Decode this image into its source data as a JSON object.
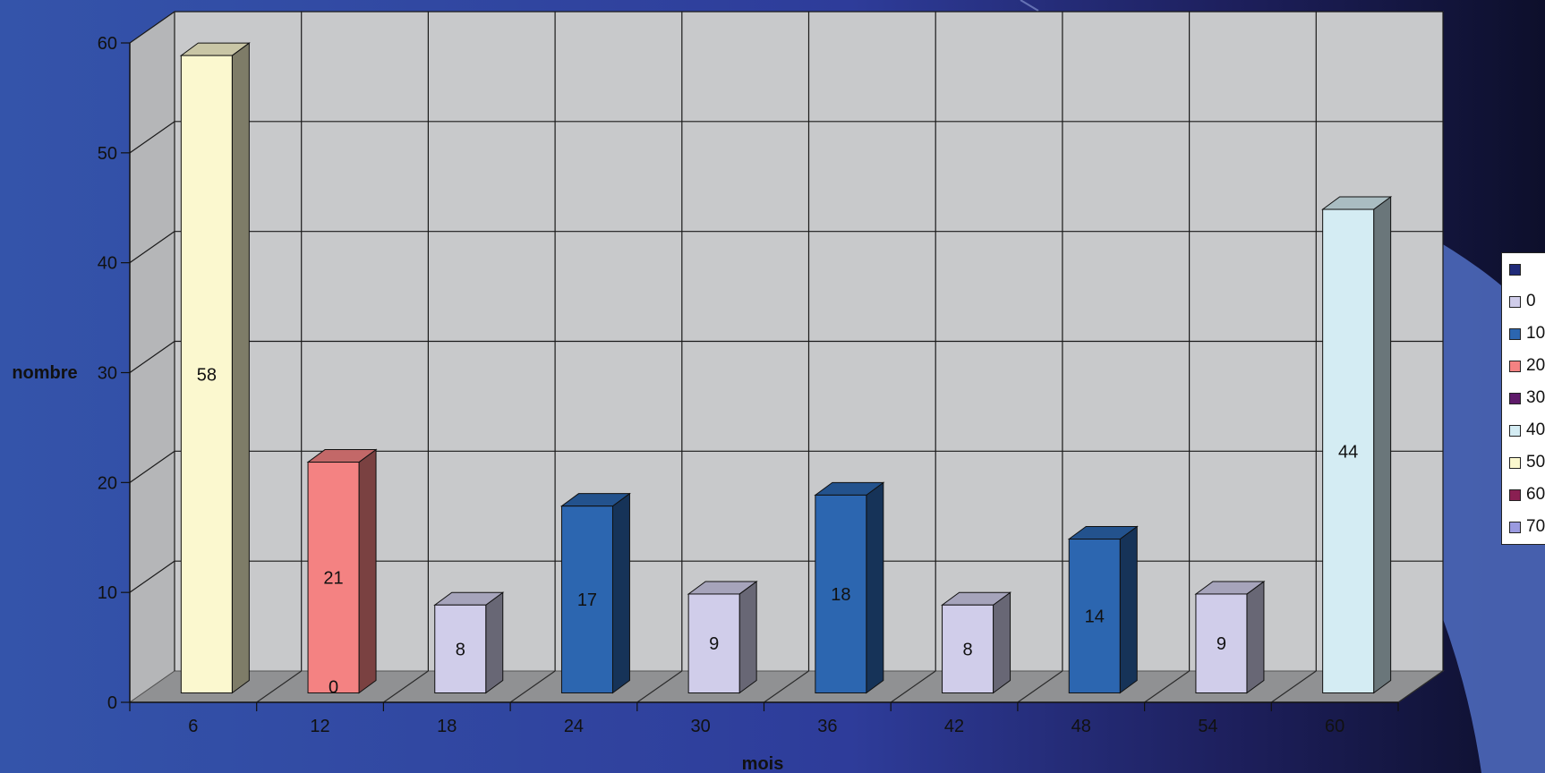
{
  "chart_data": {
    "type": "bar",
    "xlabel": "mois",
    "ylabel": "nombre",
    "ylim": [
      0,
      60
    ],
    "yticks": [
      0,
      10,
      20,
      30,
      40,
      50,
      60
    ],
    "categories": [
      "6",
      "12",
      "18",
      "24",
      "30",
      "36",
      "42",
      "48",
      "54",
      "60"
    ],
    "values": [
      58,
      21,
      8,
      17,
      9,
      18,
      8,
      14,
      9,
      44
    ],
    "data_labels": [
      "58",
      "21",
      "8",
      "17",
      "9",
      "18",
      "8",
      "14",
      "9",
      "44"
    ],
    "extra_label": "0",
    "bar_colors": [
      "#fbf8cf",
      "#f48282",
      "#d0cdea",
      "#2c66b0",
      "#d0cdea",
      "#2c66b0",
      "#d0cdea",
      "#2c66b0",
      "#d0cdea",
      "#d4ecf3"
    ],
    "grid": true,
    "view": "3d",
    "legend_position": "right",
    "legend": [
      {
        "label": "",
        "color": "#1f2a78"
      },
      {
        "label": "0",
        "color": "#d0cdea"
      },
      {
        "label": "10",
        "color": "#2c66b0"
      },
      {
        "label": "20",
        "color": "#f48282"
      },
      {
        "label": "30",
        "color": "#5e1a6a"
      },
      {
        "label": "40",
        "color": "#d4ecf3"
      },
      {
        "label": "50",
        "color": "#fbf8cf"
      },
      {
        "label": "60",
        "color": "#8a1f52"
      },
      {
        "label": "70",
        "color": "#9a9ae0"
      }
    ]
  }
}
